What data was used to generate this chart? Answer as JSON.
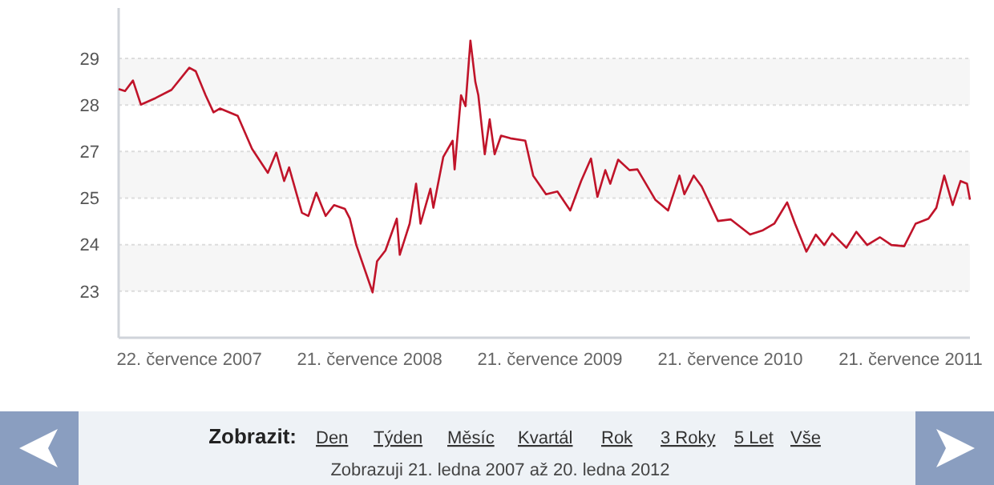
{
  "chart_data": {
    "type": "line",
    "grid": "y",
    "xlim": [
      "2007-03-01",
      "2011-11-18"
    ],
    "xticks": [
      {
        "value": "2007-07-22",
        "label": "22. července 2007"
      },
      {
        "value": "2008-07-21",
        "label": "21. července 2008"
      },
      {
        "value": "2009-07-21",
        "label": "21. července 2009"
      },
      {
        "value": "2010-07-21",
        "label": "21. července 2010"
      },
      {
        "value": "2011-07-21",
        "label": "21. července 2011"
      }
    ],
    "ylim": [
      21.8,
      30.3
    ],
    "yticks": [
      {
        "value": 23,
        "label": "23"
      },
      {
        "value": 24.2,
        "label": "24"
      },
      {
        "value": 25.4,
        "label": "25"
      },
      {
        "value": 26.6,
        "label": "27"
      },
      {
        "value": 27.8,
        "label": "28"
      },
      {
        "value": 29,
        "label": "29"
      }
    ],
    "x": [
      "2007-03-01",
      "2007-03-14",
      "2007-03-30",
      "2007-04-15",
      "2007-05-15",
      "2007-06-16",
      "2007-07-22",
      "2007-08-04",
      "2007-08-24",
      "2007-09-09",
      "2007-09-22",
      "2007-10-28",
      "2007-11-26",
      "2007-12-28",
      "2008-01-14",
      "2008-01-30",
      "2008-02-09",
      "2008-03-06",
      "2008-03-19",
      "2008-04-04",
      "2008-04-23",
      "2008-05-10",
      "2008-06-01",
      "2008-06-11",
      "2008-06-24",
      "2008-07-27",
      "2008-08-05",
      "2008-08-22",
      "2008-09-14",
      "2008-09-20",
      "2008-10-10",
      "2008-10-23",
      "2008-11-01",
      "2008-11-21",
      "2008-11-27",
      "2008-12-17",
      "2009-01-05",
      "2009-01-09",
      "2009-01-22",
      "2009-01-31",
      "2009-02-10",
      "2009-02-20",
      "2009-02-26",
      "2009-03-11",
      "2009-03-21",
      "2009-03-31",
      "2009-04-13",
      "2009-05-02",
      "2009-06-01",
      "2009-06-17",
      "2009-07-13",
      "2009-08-05",
      "2009-08-31",
      "2009-09-22",
      "2009-10-12",
      "2009-10-25",
      "2009-11-10",
      "2009-11-20",
      "2009-12-06",
      "2009-12-29",
      "2010-01-14",
      "2010-02-19",
      "2010-03-17",
      "2010-04-09",
      "2010-04-19",
      "2010-05-08",
      "2010-05-24",
      "2010-06-26",
      "2010-07-22",
      "2010-08-30",
      "2010-09-25",
      "2010-10-18",
      "2010-11-13",
      "2010-11-29",
      "2010-12-22",
      "2011-01-10",
      "2011-01-27",
      "2011-02-12",
      "2011-03-13",
      "2011-04-02",
      "2011-04-24",
      "2011-05-20",
      "2011-06-12",
      "2011-07-08",
      "2011-07-31",
      "2011-08-26",
      "2011-09-11",
      "2011-09-27",
      "2011-10-14",
      "2011-10-30",
      "2011-11-12",
      "2011-11-18"
    ],
    "series": [
      {
        "color": "#c0142a",
        "values": [
          28.21,
          28.16,
          28.43,
          27.81,
          27.98,
          28.19,
          28.76,
          28.67,
          28.05,
          27.61,
          27.71,
          27.52,
          26.67,
          26.05,
          26.57,
          25.84,
          26.19,
          25.02,
          24.94,
          25.54,
          24.94,
          25.22,
          25.12,
          24.87,
          24.19,
          22.97,
          23.77,
          24.05,
          24.87,
          23.94,
          24.74,
          25.77,
          24.74,
          25.64,
          25.15,
          26.46,
          26.88,
          26.14,
          28.05,
          27.77,
          29.46,
          28.39,
          28.05,
          26.53,
          27.43,
          26.53,
          27.01,
          26.94,
          26.88,
          25.98,
          25.5,
          25.57,
          25.08,
          25.84,
          26.42,
          25.43,
          26.12,
          25.77,
          26.39,
          26.12,
          26.14,
          25.36,
          25.08,
          25.98,
          25.5,
          25.98,
          25.7,
          24.81,
          24.85,
          24.46,
          24.57,
          24.74,
          25.29,
          24.74,
          24.02,
          24.46,
          24.19,
          24.49,
          24.12,
          24.53,
          24.19,
          24.39,
          24.19,
          24.16,
          24.74,
          24.87,
          25.15,
          25.98,
          25.22,
          25.84,
          25.77,
          25.36
        ]
      }
    ],
    "annotations": [
      "Zobrazit:",
      "Den",
      "Týden",
      "Měsíc",
      "Kvartál",
      "Rok",
      "3 Roky",
      "5 Let",
      "Vše",
      "Zobrazuji 21. ledna 2007 až 20. ledna 2012"
    ]
  }
}
